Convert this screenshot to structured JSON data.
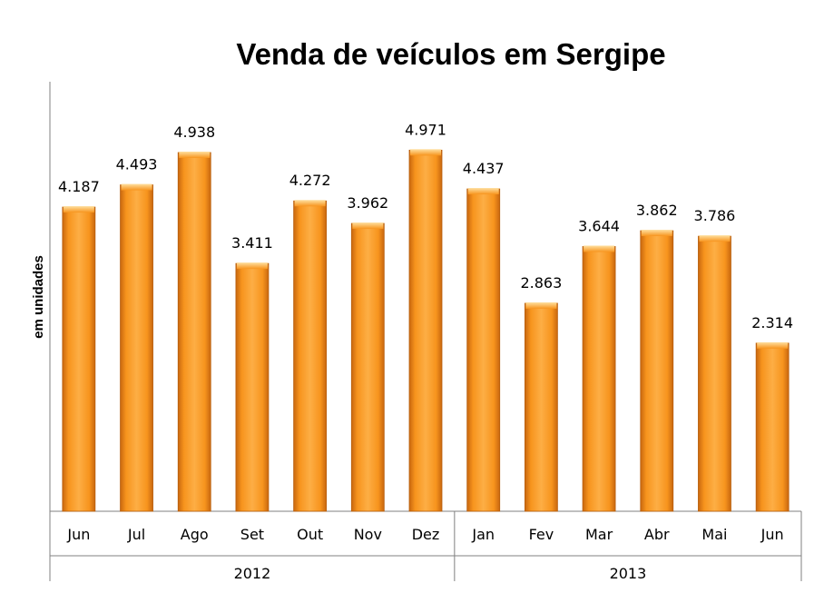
{
  "chart_data": {
    "type": "bar",
    "title": "Venda de veículos em Sergipe",
    "ylabel": "em unidades",
    "xlabel": "",
    "categories": [
      "Jun",
      "Jul",
      "Ago",
      "Set",
      "Out",
      "Nov",
      "Dez",
      "Jan",
      "Fev",
      "Mar",
      "Abr",
      "Mai",
      "Jun"
    ],
    "groups": [
      {
        "label": "2012",
        "count": 7
      },
      {
        "label": "2013",
        "count": 6
      }
    ],
    "values": [
      4187,
      4493,
      4938,
      3411,
      4272,
      3962,
      4971,
      4437,
      2863,
      3644,
      3862,
      3786,
      2314
    ],
    "value_labels": [
      "4.187",
      "4.493",
      "4.938",
      "3.411",
      "4.272",
      "3.962",
      "4.971",
      "4.437",
      "2.863",
      "3.644",
      "3.862",
      "3.786",
      "2.314"
    ],
    "ylim": [
      0,
      5000
    ],
    "grid": false,
    "legend": "none",
    "colors": {
      "bar_main": "#F7941D",
      "bar_light": "#FDBE5A",
      "bar_dark": "#C8670F",
      "axis": "#808080"
    }
  }
}
